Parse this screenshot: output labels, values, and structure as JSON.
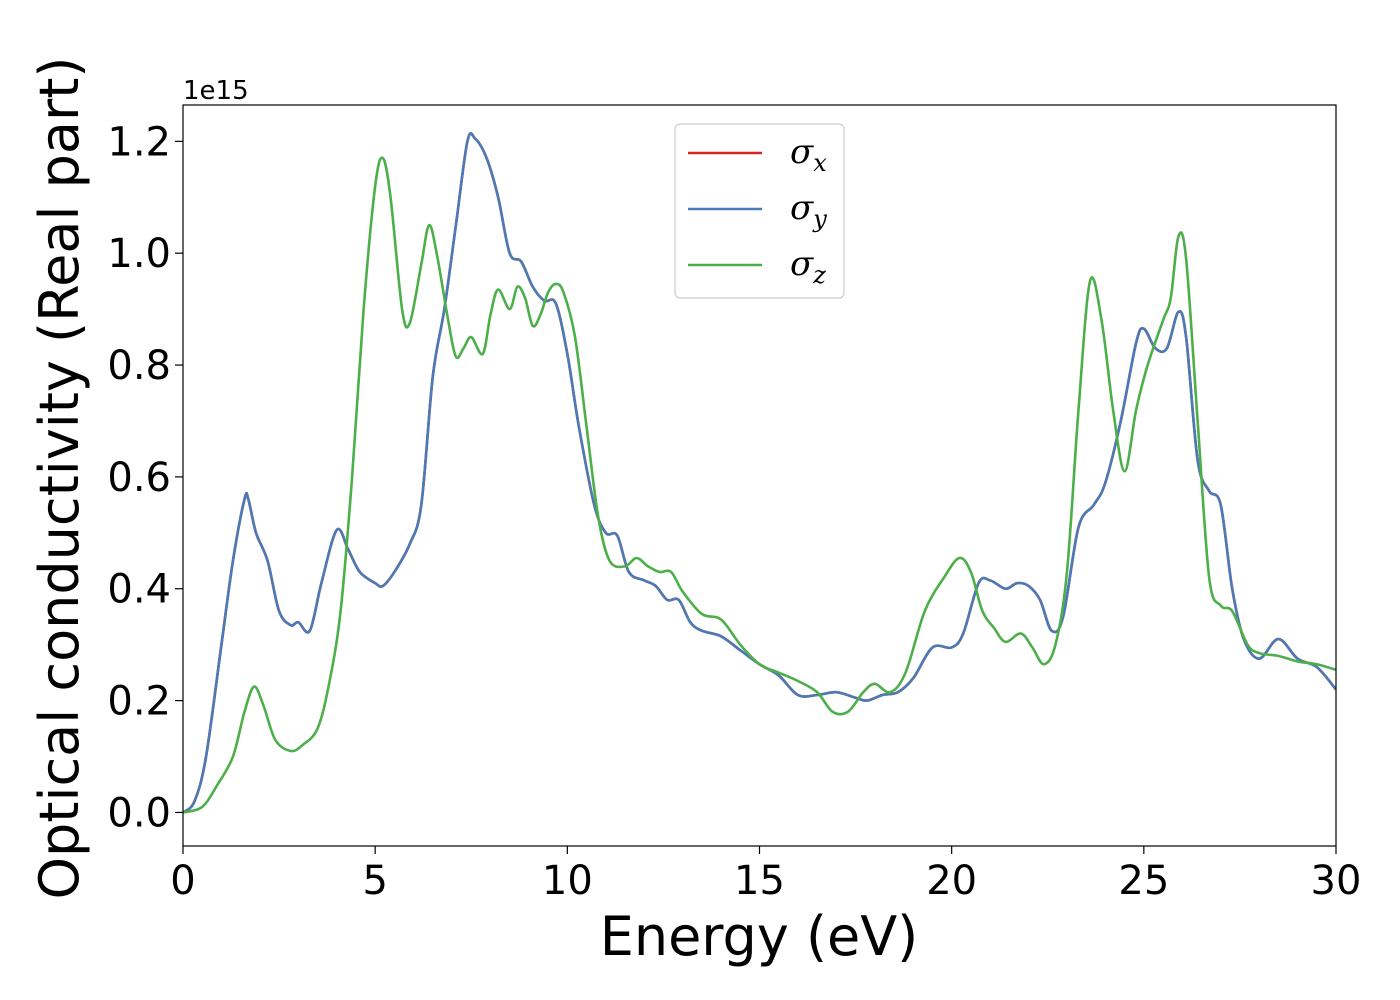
{
  "chart_data": {
    "type": "line",
    "xlabel": "Energy (eV)",
    "ylabel": "Optical conductivity (Real part)",
    "y_offset_label": "1e15",
    "xlim": [
      0,
      30
    ],
    "ylim": [
      -0.06,
      1.265
    ],
    "x_ticks": [
      0,
      5,
      10,
      15,
      20,
      25,
      30
    ],
    "x_tick_labels": [
      "0",
      "5",
      "10",
      "15",
      "20",
      "25",
      "30"
    ],
    "y_ticks": [
      0.0,
      0.2,
      0.4,
      0.6,
      0.8,
      1.0,
      1.2
    ],
    "y_tick_labels": [
      "0.0",
      "0.2",
      "0.4",
      "0.6",
      "0.8",
      "1.0",
      "1.2"
    ],
    "grid": false,
    "legend_position": "top-center",
    "legend": [
      {
        "symbol": "σ",
        "sub": "x",
        "color": "#d62728"
      },
      {
        "symbol": "σ",
        "sub": "y",
        "color": "#4a7bb7"
      },
      {
        "symbol": "σ",
        "sub": "z",
        "color": "#4daf4a"
      }
    ],
    "series": [
      {
        "name": "σx",
        "color": "#d62728",
        "points": [
          [
            0,
            0
          ],
          [
            0.3,
            0.02
          ],
          [
            0.6,
            0.1
          ],
          [
            1.0,
            0.3
          ],
          [
            1.3,
            0.45
          ],
          [
            1.6,
            0.56
          ],
          [
            1.7,
            0.56
          ],
          [
            1.9,
            0.5
          ],
          [
            2.2,
            0.45
          ],
          [
            2.5,
            0.36
          ],
          [
            2.8,
            0.335
          ],
          [
            3.0,
            0.34
          ],
          [
            3.3,
            0.325
          ],
          [
            3.6,
            0.41
          ],
          [
            4.0,
            0.505
          ],
          [
            4.3,
            0.47
          ],
          [
            4.6,
            0.43
          ],
          [
            5.0,
            0.41
          ],
          [
            5.2,
            0.405
          ],
          [
            5.5,
            0.43
          ],
          [
            5.9,
            0.48
          ],
          [
            6.2,
            0.55
          ],
          [
            6.5,
            0.78
          ],
          [
            6.8,
            0.9
          ],
          [
            7.1,
            1.05
          ],
          [
            7.4,
            1.2
          ],
          [
            7.6,
            1.205
          ],
          [
            7.9,
            1.17
          ],
          [
            8.2,
            1.1
          ],
          [
            8.5,
            1.0
          ],
          [
            8.8,
            0.985
          ],
          [
            9.1,
            0.94
          ],
          [
            9.4,
            0.915
          ],
          [
            9.7,
            0.91
          ],
          [
            10.0,
            0.82
          ],
          [
            10.3,
            0.69
          ],
          [
            10.7,
            0.55
          ],
          [
            11.0,
            0.5
          ],
          [
            11.3,
            0.495
          ],
          [
            11.6,
            0.43
          ],
          [
            12.0,
            0.415
          ],
          [
            12.3,
            0.405
          ],
          [
            12.6,
            0.38
          ],
          [
            12.9,
            0.38
          ],
          [
            13.2,
            0.34
          ],
          [
            13.5,
            0.325
          ],
          [
            14.0,
            0.315
          ],
          [
            14.5,
            0.29
          ],
          [
            15.0,
            0.265
          ],
          [
            15.5,
            0.245
          ],
          [
            16.0,
            0.21
          ],
          [
            16.5,
            0.21
          ],
          [
            17.0,
            0.215
          ],
          [
            17.5,
            0.205
          ],
          [
            17.8,
            0.2
          ],
          [
            18.2,
            0.21
          ],
          [
            18.6,
            0.215
          ],
          [
            19.0,
            0.24
          ],
          [
            19.5,
            0.295
          ],
          [
            20.0,
            0.295
          ],
          [
            20.3,
            0.32
          ],
          [
            20.7,
            0.41
          ],
          [
            21.0,
            0.415
          ],
          [
            21.4,
            0.4
          ],
          [
            21.7,
            0.41
          ],
          [
            22.0,
            0.405
          ],
          [
            22.3,
            0.38
          ],
          [
            22.6,
            0.325
          ],
          [
            22.9,
            0.35
          ],
          [
            23.3,
            0.51
          ],
          [
            23.7,
            0.55
          ],
          [
            24.0,
            0.59
          ],
          [
            24.4,
            0.7
          ],
          [
            24.8,
            0.84
          ],
          [
            25.0,
            0.865
          ],
          [
            25.3,
            0.83
          ],
          [
            25.6,
            0.83
          ],
          [
            25.9,
            0.895
          ],
          [
            26.1,
            0.85
          ],
          [
            26.4,
            0.63
          ],
          [
            26.7,
            0.575
          ],
          [
            27.0,
            0.55
          ],
          [
            27.3,
            0.4
          ],
          [
            27.6,
            0.31
          ],
          [
            28.0,
            0.275
          ],
          [
            28.5,
            0.31
          ],
          [
            29.0,
            0.275
          ],
          [
            29.5,
            0.26
          ],
          [
            30.0,
            0.22
          ]
        ]
      },
      {
        "name": "σy",
        "color": "#4a7bb7",
        "points": [
          [
            0,
            0
          ],
          [
            0.3,
            0.02
          ],
          [
            0.6,
            0.1
          ],
          [
            1.0,
            0.3
          ],
          [
            1.3,
            0.45
          ],
          [
            1.6,
            0.56
          ],
          [
            1.7,
            0.56
          ],
          [
            1.9,
            0.5
          ],
          [
            2.2,
            0.45
          ],
          [
            2.5,
            0.36
          ],
          [
            2.8,
            0.335
          ],
          [
            3.0,
            0.34
          ],
          [
            3.3,
            0.325
          ],
          [
            3.6,
            0.41
          ],
          [
            4.0,
            0.505
          ],
          [
            4.3,
            0.47
          ],
          [
            4.6,
            0.43
          ],
          [
            5.0,
            0.41
          ],
          [
            5.2,
            0.405
          ],
          [
            5.5,
            0.43
          ],
          [
            5.9,
            0.48
          ],
          [
            6.2,
            0.55
          ],
          [
            6.5,
            0.78
          ],
          [
            6.8,
            0.9
          ],
          [
            7.1,
            1.05
          ],
          [
            7.4,
            1.2
          ],
          [
            7.6,
            1.205
          ],
          [
            7.9,
            1.17
          ],
          [
            8.2,
            1.1
          ],
          [
            8.5,
            1.0
          ],
          [
            8.8,
            0.985
          ],
          [
            9.1,
            0.94
          ],
          [
            9.4,
            0.915
          ],
          [
            9.7,
            0.91
          ],
          [
            10.0,
            0.82
          ],
          [
            10.3,
            0.69
          ],
          [
            10.7,
            0.55
          ],
          [
            11.0,
            0.5
          ],
          [
            11.3,
            0.495
          ],
          [
            11.6,
            0.43
          ],
          [
            12.0,
            0.415
          ],
          [
            12.3,
            0.405
          ],
          [
            12.6,
            0.38
          ],
          [
            12.9,
            0.38
          ],
          [
            13.2,
            0.34
          ],
          [
            13.5,
            0.325
          ],
          [
            14.0,
            0.315
          ],
          [
            14.5,
            0.29
          ],
          [
            15.0,
            0.265
          ],
          [
            15.5,
            0.245
          ],
          [
            16.0,
            0.21
          ],
          [
            16.5,
            0.21
          ],
          [
            17.0,
            0.215
          ],
          [
            17.5,
            0.205
          ],
          [
            17.8,
            0.2
          ],
          [
            18.2,
            0.21
          ],
          [
            18.6,
            0.215
          ],
          [
            19.0,
            0.24
          ],
          [
            19.5,
            0.295
          ],
          [
            20.0,
            0.295
          ],
          [
            20.3,
            0.32
          ],
          [
            20.7,
            0.41
          ],
          [
            21.0,
            0.415
          ],
          [
            21.4,
            0.4
          ],
          [
            21.7,
            0.41
          ],
          [
            22.0,
            0.405
          ],
          [
            22.3,
            0.38
          ],
          [
            22.6,
            0.325
          ],
          [
            22.9,
            0.35
          ],
          [
            23.3,
            0.51
          ],
          [
            23.7,
            0.55
          ],
          [
            24.0,
            0.59
          ],
          [
            24.4,
            0.7
          ],
          [
            24.8,
            0.84
          ],
          [
            25.0,
            0.865
          ],
          [
            25.3,
            0.83
          ],
          [
            25.6,
            0.83
          ],
          [
            25.9,
            0.895
          ],
          [
            26.1,
            0.85
          ],
          [
            26.4,
            0.63
          ],
          [
            26.7,
            0.575
          ],
          [
            27.0,
            0.55
          ],
          [
            27.3,
            0.4
          ],
          [
            27.6,
            0.31
          ],
          [
            28.0,
            0.275
          ],
          [
            28.5,
            0.31
          ],
          [
            29.0,
            0.275
          ],
          [
            29.5,
            0.26
          ],
          [
            30.0,
            0.22
          ]
        ]
      },
      {
        "name": "σz",
        "color": "#4daf4a",
        "points": [
          [
            0,
            0
          ],
          [
            0.5,
            0.01
          ],
          [
            0.9,
            0.05
          ],
          [
            1.3,
            0.1
          ],
          [
            1.6,
            0.18
          ],
          [
            1.85,
            0.225
          ],
          [
            2.1,
            0.19
          ],
          [
            2.4,
            0.13
          ],
          [
            2.8,
            0.11
          ],
          [
            3.1,
            0.12
          ],
          [
            3.5,
            0.15
          ],
          [
            3.8,
            0.23
          ],
          [
            4.1,
            0.36
          ],
          [
            4.4,
            0.6
          ],
          [
            4.7,
            0.9
          ],
          [
            5.0,
            1.12
          ],
          [
            5.2,
            1.17
          ],
          [
            5.4,
            1.1
          ],
          [
            5.7,
            0.9
          ],
          [
            5.9,
            0.875
          ],
          [
            6.2,
            0.98
          ],
          [
            6.4,
            1.05
          ],
          [
            6.6,
            1.0
          ],
          [
            6.9,
            0.88
          ],
          [
            7.1,
            0.815
          ],
          [
            7.3,
            0.83
          ],
          [
            7.5,
            0.85
          ],
          [
            7.8,
            0.82
          ],
          [
            8.0,
            0.89
          ],
          [
            8.2,
            0.935
          ],
          [
            8.5,
            0.9
          ],
          [
            8.7,
            0.94
          ],
          [
            8.9,
            0.92
          ],
          [
            9.1,
            0.87
          ],
          [
            9.3,
            0.89
          ],
          [
            9.5,
            0.93
          ],
          [
            9.7,
            0.945
          ],
          [
            9.9,
            0.93
          ],
          [
            10.2,
            0.85
          ],
          [
            10.5,
            0.69
          ],
          [
            10.8,
            0.53
          ],
          [
            11.1,
            0.45
          ],
          [
            11.5,
            0.44
          ],
          [
            11.8,
            0.455
          ],
          [
            12.1,
            0.44
          ],
          [
            12.4,
            0.43
          ],
          [
            12.7,
            0.43
          ],
          [
            13.0,
            0.395
          ],
          [
            13.5,
            0.355
          ],
          [
            14.0,
            0.345
          ],
          [
            14.5,
            0.3
          ],
          [
            15.0,
            0.265
          ],
          [
            15.5,
            0.25
          ],
          [
            16.0,
            0.235
          ],
          [
            16.5,
            0.215
          ],
          [
            16.9,
            0.18
          ],
          [
            17.3,
            0.18
          ],
          [
            17.7,
            0.215
          ],
          [
            18.0,
            0.23
          ],
          [
            18.4,
            0.215
          ],
          [
            18.8,
            0.25
          ],
          [
            19.3,
            0.36
          ],
          [
            19.8,
            0.42
          ],
          [
            20.2,
            0.455
          ],
          [
            20.5,
            0.43
          ],
          [
            20.8,
            0.36
          ],
          [
            21.1,
            0.33
          ],
          [
            21.4,
            0.305
          ],
          [
            21.8,
            0.32
          ],
          [
            22.1,
            0.295
          ],
          [
            22.4,
            0.265
          ],
          [
            22.7,
            0.3
          ],
          [
            23.0,
            0.43
          ],
          [
            23.3,
            0.72
          ],
          [
            23.6,
            0.95
          ],
          [
            23.9,
            0.88
          ],
          [
            24.2,
            0.72
          ],
          [
            24.5,
            0.61
          ],
          [
            24.8,
            0.72
          ],
          [
            25.1,
            0.8
          ],
          [
            25.5,
            0.88
          ],
          [
            25.7,
            0.92
          ],
          [
            25.9,
            1.03
          ],
          [
            26.1,
            0.99
          ],
          [
            26.4,
            0.7
          ],
          [
            26.7,
            0.42
          ],
          [
            27.0,
            0.37
          ],
          [
            27.3,
            0.36
          ],
          [
            27.7,
            0.3
          ],
          [
            28.0,
            0.285
          ],
          [
            28.5,
            0.28
          ],
          [
            29.0,
            0.27
          ],
          [
            29.5,
            0.265
          ],
          [
            30.0,
            0.255
          ]
        ]
      }
    ]
  }
}
